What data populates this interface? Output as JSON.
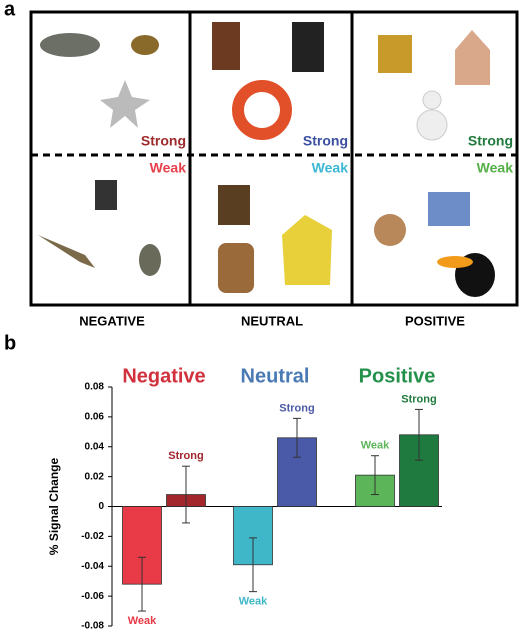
{
  "panel_a": {
    "letter": "a",
    "columns": [
      {
        "label": "NEGATIVE",
        "strong": "Strong",
        "weak": "Weak",
        "strong_color": "#9e2a2b",
        "weak_color": "#e8404b"
      },
      {
        "label": "NEUTRAL",
        "strong": "Strong",
        "weak": "Weak",
        "strong_color": "#3b4fa0",
        "weak_color": "#3bb8d4"
      },
      {
        "label": "POSITIVE",
        "strong": "Strong",
        "weak": "Weak",
        "strong_color": "#217a3d",
        "weak_color": "#55b048"
      }
    ]
  },
  "chart_data": {
    "type": "bar",
    "letter": "b",
    "ylabel": "% Signal Change",
    "categories": [
      "Negative",
      "Neutral",
      "Positive"
    ],
    "category_colors": [
      "#d0313d",
      "#4a7ab4",
      "#23914a"
    ],
    "series": [
      {
        "name": "Weak",
        "values": [
          -0.052,
          -0.039,
          0.021
        ],
        "errors": [
          0.018,
          0.018,
          0.013
        ],
        "colors": [
          "#e83a47",
          "#3fb7c9",
          "#5db55a"
        ]
      },
      {
        "name": "Strong",
        "values": [
          0.008,
          0.046,
          0.048
        ],
        "errors": [
          0.019,
          0.013,
          0.017
        ],
        "colors": [
          "#a3262c",
          "#4b5aa8",
          "#1e7a3e"
        ]
      }
    ],
    "ylim": [
      -0.08,
      0.08
    ],
    "yticks": [
      -0.08,
      -0.06,
      -0.04,
      -0.02,
      0,
      0.02,
      0.04,
      0.06,
      0.08
    ]
  }
}
